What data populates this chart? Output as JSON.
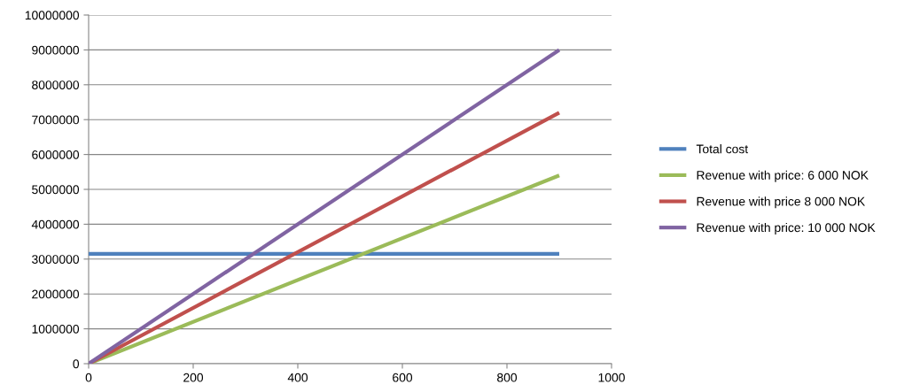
{
  "chart_data": {
    "type": "line",
    "x": [
      0,
      900
    ],
    "series": [
      {
        "name": "Total cost",
        "color": "#4f81bd",
        "values": [
          3150000,
          3150000
        ]
      },
      {
        "name": "Revenue with price: 6 000 NOK",
        "color": "#9bbb59",
        "values": [
          0,
          5400000
        ]
      },
      {
        "name": "Revenue with price 8 000 NOK",
        "color": "#c0504d",
        "values": [
          0,
          7200000
        ]
      },
      {
        "name": "Revenue with price: 10 000 NOK",
        "color": "#8064a2",
        "values": [
          0,
          9000000
        ]
      }
    ],
    "xlim": [
      0,
      1000
    ],
    "xticks": [
      0,
      200,
      400,
      600,
      800,
      1000
    ],
    "ylim": [
      0,
      10000000
    ],
    "yticks": [
      0,
      1000000,
      2000000,
      3000000,
      4000000,
      5000000,
      6000000,
      7000000,
      8000000,
      9000000,
      10000000
    ],
    "grid": "y",
    "legend": "right",
    "marker": "none",
    "line_style": "solid"
  }
}
